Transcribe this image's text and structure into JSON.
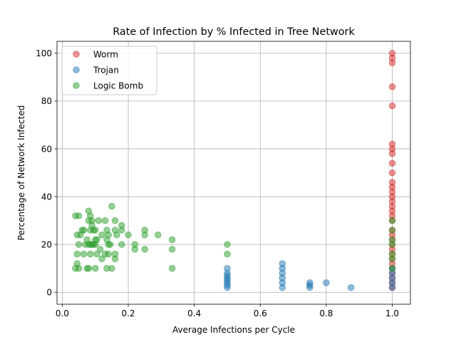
{
  "chart_data": {
    "type": "scatter",
    "title": "Rate of Infection by % Infected in Tree Network",
    "xlabel": "Average Infections per Cycle",
    "ylabel": "Percentage of Network Infected",
    "xlim": [
      -0.016,
      1.055
    ],
    "ylim": [
      -5,
      105
    ],
    "xticks": [
      0.0,
      0.2,
      0.4,
      0.6,
      0.8,
      1.0
    ],
    "xtick_labels": [
      "0.0",
      "0.2",
      "0.4",
      "0.6",
      "0.8",
      "1.0"
    ],
    "yticks": [
      0,
      20,
      40,
      60,
      80,
      100
    ],
    "ytick_labels": [
      "0",
      "20",
      "40",
      "60",
      "80",
      "100"
    ],
    "grid": true,
    "legend_position": "top-left",
    "series": [
      {
        "name": "Worm",
        "color": "#d62728",
        "points": [
          [
            1.0,
            100
          ],
          [
            1.0,
            98
          ],
          [
            1.0,
            96
          ],
          [
            1.0,
            86
          ],
          [
            1.0,
            78
          ],
          [
            1.0,
            62
          ],
          [
            1.0,
            60
          ],
          [
            1.0,
            58
          ],
          [
            1.0,
            54
          ],
          [
            1.0,
            50
          ],
          [
            1.0,
            46
          ],
          [
            1.0,
            44
          ],
          [
            1.0,
            42
          ],
          [
            1.0,
            40
          ],
          [
            1.0,
            38
          ],
          [
            1.0,
            36
          ],
          [
            1.0,
            34
          ],
          [
            1.0,
            32
          ],
          [
            1.0,
            30
          ],
          [
            1.0,
            26
          ],
          [
            1.0,
            24
          ],
          [
            1.0,
            22
          ],
          [
            1.0,
            20
          ],
          [
            1.0,
            18
          ],
          [
            1.0,
            16
          ],
          [
            1.0,
            14
          ],
          [
            1.0,
            12
          ],
          [
            1.0,
            10
          ],
          [
            1.0,
            8
          ],
          [
            1.0,
            6
          ],
          [
            1.0,
            4
          ],
          [
            1.0,
            2
          ]
        ]
      },
      {
        "name": "Trojan",
        "color": "#1f77b4",
        "points": [
          [
            0.5,
            10
          ],
          [
            0.5,
            8
          ],
          [
            0.5,
            7
          ],
          [
            0.5,
            6
          ],
          [
            0.5,
            5
          ],
          [
            0.5,
            4
          ],
          [
            0.5,
            3
          ],
          [
            0.5,
            2
          ],
          [
            0.667,
            12
          ],
          [
            0.667,
            10
          ],
          [
            0.667,
            8
          ],
          [
            0.667,
            6
          ],
          [
            0.667,
            4
          ],
          [
            0.667,
            2
          ],
          [
            0.75,
            4
          ],
          [
            0.75,
            3
          ],
          [
            0.75,
            2
          ],
          [
            0.8,
            4
          ],
          [
            0.875,
            2
          ],
          [
            1.0,
            10
          ],
          [
            1.0,
            8
          ],
          [
            1.0,
            6
          ],
          [
            1.0,
            4
          ],
          [
            1.0,
            2
          ]
        ]
      },
      {
        "name": "Logic Bomb",
        "color": "#2ca02c",
        "points": [
          [
            0.04,
            32
          ],
          [
            0.05,
            32
          ],
          [
            0.045,
            24
          ],
          [
            0.055,
            24
          ],
          [
            0.05,
            20
          ],
          [
            0.06,
            26
          ],
          [
            0.065,
            26
          ],
          [
            0.07,
            20
          ],
          [
            0.075,
            22
          ],
          [
            0.08,
            34
          ],
          [
            0.085,
            32
          ],
          [
            0.08,
            30
          ],
          [
            0.09,
            30
          ],
          [
            0.09,
            28
          ],
          [
            0.085,
            26
          ],
          [
            0.095,
            26
          ],
          [
            0.1,
            26
          ],
          [
            0.08,
            20
          ],
          [
            0.085,
            20
          ],
          [
            0.09,
            20
          ],
          [
            0.095,
            20
          ],
          [
            0.1,
            20
          ],
          [
            0.1,
            22
          ],
          [
            0.105,
            22
          ],
          [
            0.11,
            30
          ],
          [
            0.12,
            24
          ],
          [
            0.13,
            30
          ],
          [
            0.135,
            26
          ],
          [
            0.14,
            24
          ],
          [
            0.135,
            22
          ],
          [
            0.14,
            20
          ],
          [
            0.145,
            20
          ],
          [
            0.15,
            36
          ],
          [
            0.16,
            30
          ],
          [
            0.16,
            26
          ],
          [
            0.165,
            24
          ],
          [
            0.18,
            28
          ],
          [
            0.18,
            26
          ],
          [
            0.18,
            20
          ],
          [
            0.2,
            24
          ],
          [
            0.22,
            20
          ],
          [
            0.25,
            26
          ],
          [
            0.25,
            24
          ],
          [
            0.29,
            24
          ],
          [
            0.333,
            22
          ],
          [
            0.333,
            18
          ],
          [
            0.045,
            16
          ],
          [
            0.065,
            16
          ],
          [
            0.085,
            16
          ],
          [
            0.105,
            16
          ],
          [
            0.115,
            18
          ],
          [
            0.13,
            16
          ],
          [
            0.14,
            16
          ],
          [
            0.16,
            16
          ],
          [
            0.22,
            18
          ],
          [
            0.25,
            18
          ],
          [
            0.045,
            12
          ],
          [
            0.04,
            10
          ],
          [
            0.05,
            10
          ],
          [
            0.075,
            10
          ],
          [
            0.08,
            10
          ],
          [
            0.1,
            10
          ],
          [
            0.12,
            14
          ],
          [
            0.135,
            10
          ],
          [
            0.15,
            10
          ],
          [
            0.16,
            14
          ],
          [
            0.333,
            10
          ],
          [
            0.5,
            20
          ],
          [
            0.5,
            16
          ],
          [
            1.0,
            30
          ],
          [
            1.0,
            26
          ],
          [
            1.0,
            22
          ],
          [
            1.0,
            20
          ],
          [
            1.0,
            16
          ],
          [
            1.0,
            14
          ],
          [
            1.0,
            10
          ]
        ]
      }
    ]
  }
}
